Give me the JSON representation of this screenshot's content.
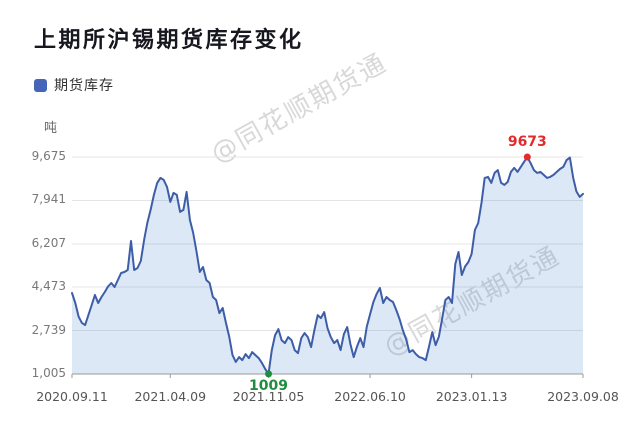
{
  "title": "上期所沪锡期货库存变化",
  "legend": {
    "label": "期货库存",
    "color": "#4565b8"
  },
  "watermark": {
    "text": "@同花顺期货通"
  },
  "chart_data": {
    "type": "area",
    "title": "上期所沪锡期货库存变化",
    "series_name": "期货库存",
    "ylabel": "吨",
    "grid": true,
    "legend_position": "top-left",
    "ylim": [
      1005,
      9675
    ],
    "y_ticks": [
      "9,675",
      "7,941",
      "6,207",
      "4,473",
      "2,739",
      "1,005"
    ],
    "y_tick_values": [
      9675,
      7941,
      6207,
      4473,
      2739,
      1005
    ],
    "x_tick_labels": [
      "2020.09.11",
      "2021.04.09",
      "2021.11.05",
      "2022.06.10",
      "2023.01.13",
      "2023.09.08"
    ],
    "x_tick_indices": [
      0,
      30,
      60,
      91,
      122,
      156
    ],
    "line_color": "#3d5da8",
    "fill_color": "rgba(80,140,210,0.2)",
    "values": [
      4240,
      3840,
      3300,
      3050,
      2960,
      3360,
      3760,
      4160,
      3840,
      4080,
      4280,
      4500,
      4640,
      4480,
      4760,
      5040,
      5080,
      5160,
      6320,
      5160,
      5240,
      5520,
      6360,
      7040,
      7560,
      8160,
      8640,
      8840,
      8760,
      8480,
      7880,
      8240,
      8160,
      7480,
      7560,
      8280,
      7160,
      6640,
      5900,
      5080,
      5280,
      4760,
      4640,
      4080,
      3960,
      3440,
      3640,
      3040,
      2500,
      1760,
      1490,
      1680,
      1560,
      1800,
      1640,
      1880,
      1760,
      1640,
      1440,
      1200,
      1009,
      1960,
      2560,
      2800,
      2360,
      2240,
      2480,
      2360,
      1960,
      1840,
      2440,
      2640,
      2480,
      2080,
      2760,
      3360,
      3240,
      3480,
      2840,
      2480,
      2240,
      2360,
      1960,
      2600,
      2880,
      2200,
      1680,
      2100,
      2440,
      2080,
      2900,
      3400,
      3880,
      4200,
      4440,
      3840,
      4080,
      3960,
      3880,
      3560,
      3200,
      2760,
      2400,
      1880,
      1960,
      1800,
      1680,
      1640,
      1560,
      2100,
      2680,
      2160,
      2500,
      3200,
      3960,
      4080,
      3840,
      5400,
      5880,
      4960,
      5300,
      5480,
      5800,
      6760,
      7040,
      7840,
      8840,
      8880,
      8640,
      9040,
      9150,
      8640,
      8560,
      8680,
      9080,
      9240,
      9080,
      9280,
      9480,
      9673,
      9430,
      9150,
      9040,
      9080,
      8960,
      8840,
      8880,
      8960,
      9080,
      9200,
      9280,
      9550,
      9650,
      8840,
      8300,
      8080,
      8200
    ],
    "annotations": [
      {
        "label": "9673",
        "value": 9673,
        "index": 139,
        "color": "#e22b2b",
        "position": "above"
      },
      {
        "label": "1009",
        "value": 1009,
        "index": 60,
        "color": "#1e8e3e",
        "position": "below"
      }
    ]
  }
}
